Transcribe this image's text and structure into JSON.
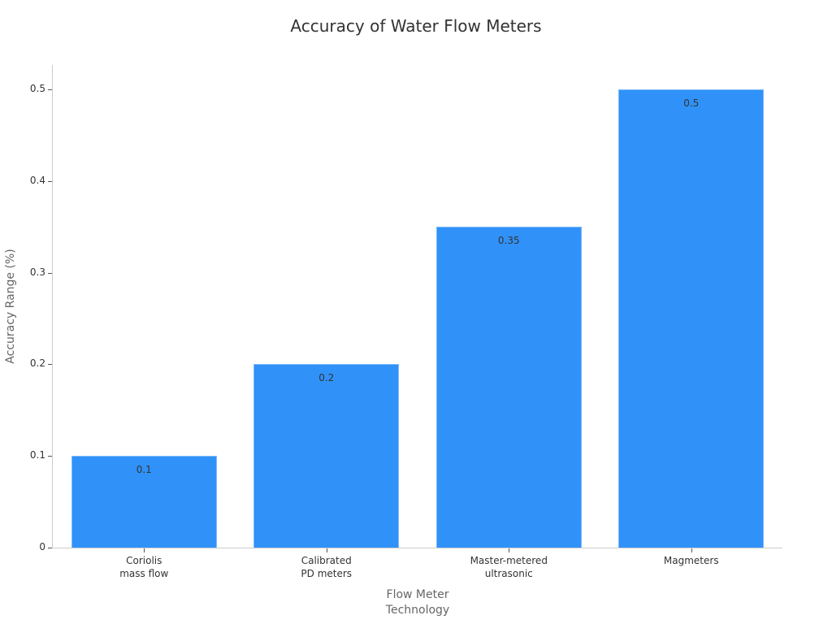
{
  "chart_data": {
    "type": "bar",
    "title": "Accuracy of Water Flow Meters",
    "xlabel": "Flow Meter\nTechnology",
    "ylabel": "Accuracy Range (%)",
    "categories": [
      "Coriolis\nmass flow",
      "Calibrated\nPD meters",
      "Master-metered\nultrasonic",
      "Magmeters"
    ],
    "values": [
      0.1,
      0.2,
      0.35,
      0.5
    ],
    "data_labels": [
      "0.1",
      "0.2",
      "0.35",
      "0.5"
    ],
    "ylim": [
      0,
      0.5
    ],
    "yticks": [
      "0",
      "0.1",
      "0.2",
      "0.3",
      "0.4",
      "0.5"
    ],
    "ytick_values": [
      0,
      0.1,
      0.2,
      0.3,
      0.4,
      0.5
    ],
    "grid": false,
    "legend": null,
    "colors": {
      "bar": "#3092f8",
      "bar_edge": "#7ab9fb",
      "axis": "#cccccc"
    }
  }
}
